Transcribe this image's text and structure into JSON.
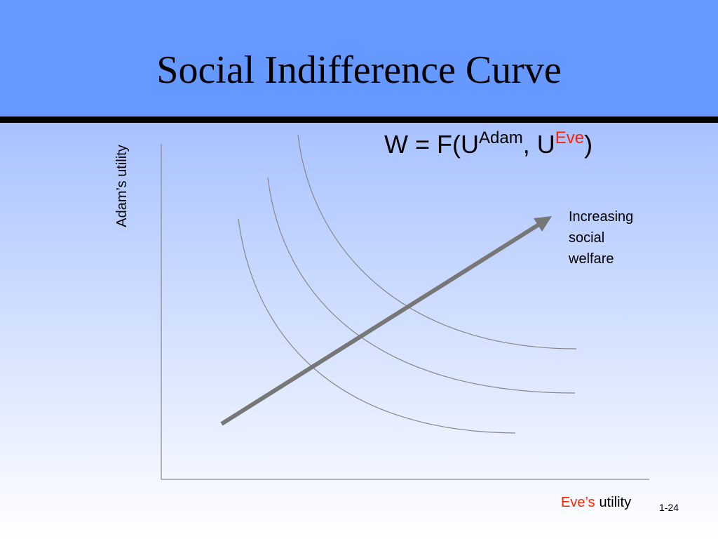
{
  "header": {
    "title": "Social Indifference Curve"
  },
  "formula": {
    "lhs": "W = F(U",
    "sup1": "Adam",
    "mid": ", U",
    "sup2": "Eve",
    "end": ")"
  },
  "y_axis_label": "Adam’s utility",
  "x_axis_label": {
    "highlight": "Eve’s",
    "rest": "utility"
  },
  "annotation": {
    "lines": [
      "Increasing",
      "social",
      "welfare"
    ]
  },
  "slide_number": "1-24"
}
